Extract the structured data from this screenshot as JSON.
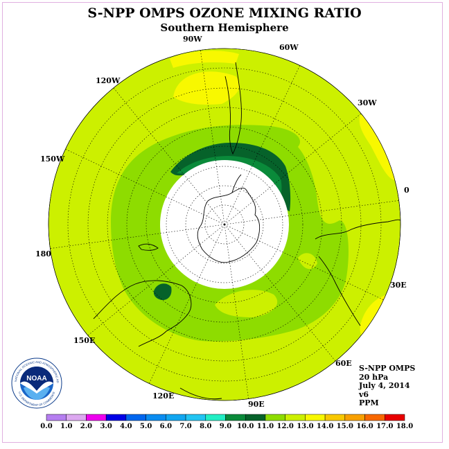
{
  "title": "S-NPP OMPS OZONE MIXING RATIO",
  "subtitle": "Southern Hemisphere",
  "longitude_labels": [
    "0",
    "30E",
    "60E",
    "90E",
    "120E",
    "150E",
    "180",
    "150W",
    "120W",
    "90W",
    "60W",
    "30W"
  ],
  "info": {
    "instrument": "S-NPP OMPS",
    "level": "20 hPa",
    "date": "July 4, 2014",
    "version": "v6",
    "units": "PPM"
  },
  "logo": {
    "text": "NOAA",
    "ring_text": "NATIONAL OCEANIC AND ATMOSPHERIC ADMINISTRATION",
    "ring_text_bottom": "U.S. DEPARTMENT OF COMMERCE"
  },
  "colorbar": {
    "ticks": [
      "0.0",
      "1.0",
      "2.0",
      "3.0",
      "4.0",
      "5.0",
      "6.0",
      "7.0",
      "8.0",
      "9.0",
      "10.0",
      "11.0",
      "12.0",
      "13.0",
      "14.0",
      "15.0",
      "16.0",
      "17.0",
      "18.0"
    ],
    "colors": [
      "#b57ef0",
      "#dca8f0",
      "#ee00ee",
      "#0000e6",
      "#0066ee",
      "#0a8cf0",
      "#11a6f0",
      "#22c4f2",
      "#22eec4",
      "#0a8a3a",
      "#06622a",
      "#8edc00",
      "#ccf000",
      "#f8f800",
      "#f8c800",
      "#f8a000",
      "#f86800",
      "#e80000",
      "#8a5a3c"
    ]
  },
  "colors": {
    "background_level": "#ccf000",
    "ring_light_green": "#8edc00",
    "dark_green_core": "#06622a",
    "no_data": "#ffffff",
    "high_yellow": "#f8f800"
  }
}
